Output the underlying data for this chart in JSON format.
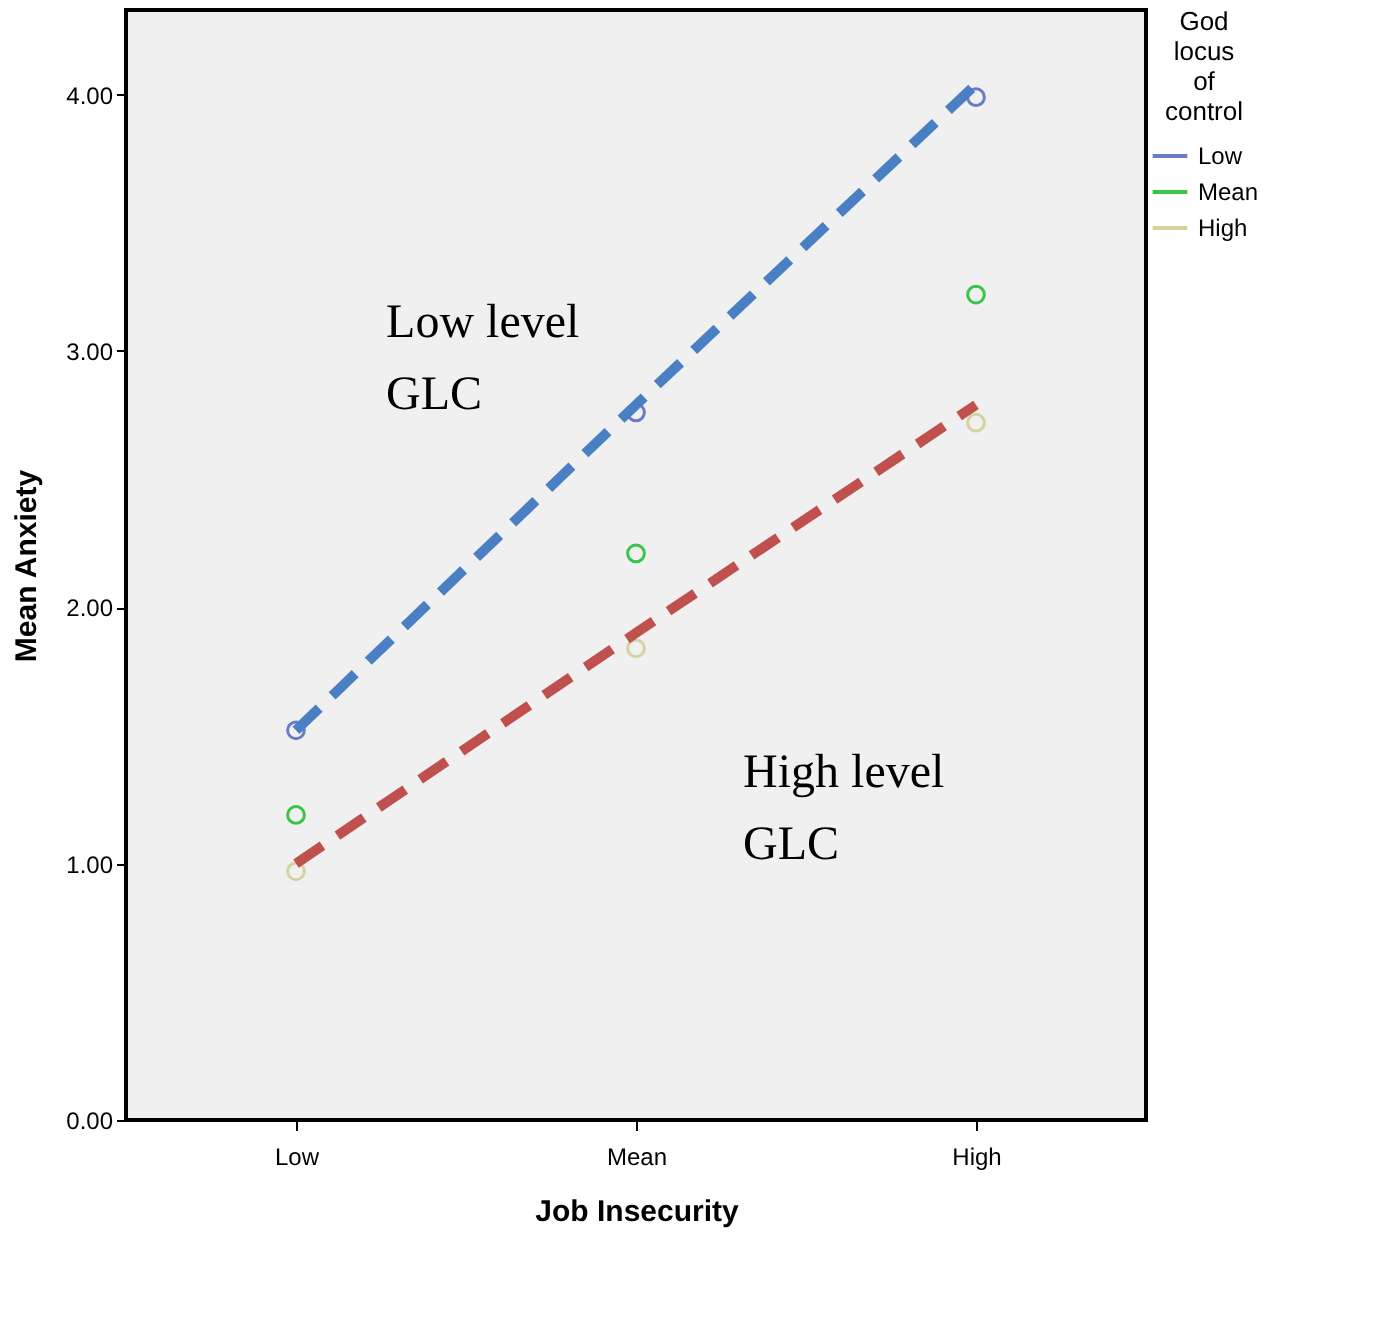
{
  "chart_data": {
    "type": "scatter",
    "xlabel": "Job Insecurity",
    "ylabel": "Mean Anxiety",
    "legend_title": "God locus of control",
    "categories": [
      "Low",
      "Mean",
      "High"
    ],
    "series": [
      {
        "name": "Low",
        "color": "#6a7cc6",
        "values": [
          1.52,
          2.76,
          3.99
        ]
      },
      {
        "name": "Mean",
        "color": "#3cc34a",
        "values": [
          1.19,
          2.21,
          3.22
        ]
      },
      {
        "name": "High",
        "color": "#d6d2a0",
        "values": [
          0.97,
          1.84,
          2.72
        ]
      },
      {
        "type": "line",
        "color": "#4a7fc4",
        "line_style": "dashed",
        "marker": "none",
        "values": [
          1.52,
          2.79,
          4.04
        ]
      },
      {
        "type": "line",
        "color": "#c0504d",
        "line_style": "dashed",
        "marker": "none",
        "values": [
          1.0,
          1.9,
          2.79
        ]
      }
    ],
    "annotations": [
      "Low level\nGLC",
      "High level\nGLC"
    ],
    "ylim": [
      0,
      4.33
    ],
    "yticks": [
      {
        "value": 0,
        "label": "0.00"
      },
      {
        "value": 1,
        "label": "1.00"
      },
      {
        "value": 2,
        "label": "2.00"
      },
      {
        "value": 3,
        "label": "3.00"
      },
      {
        "value": 4,
        "label": "4.00"
      }
    ],
    "marker": "circle",
    "grid": false,
    "legend": "top right"
  }
}
